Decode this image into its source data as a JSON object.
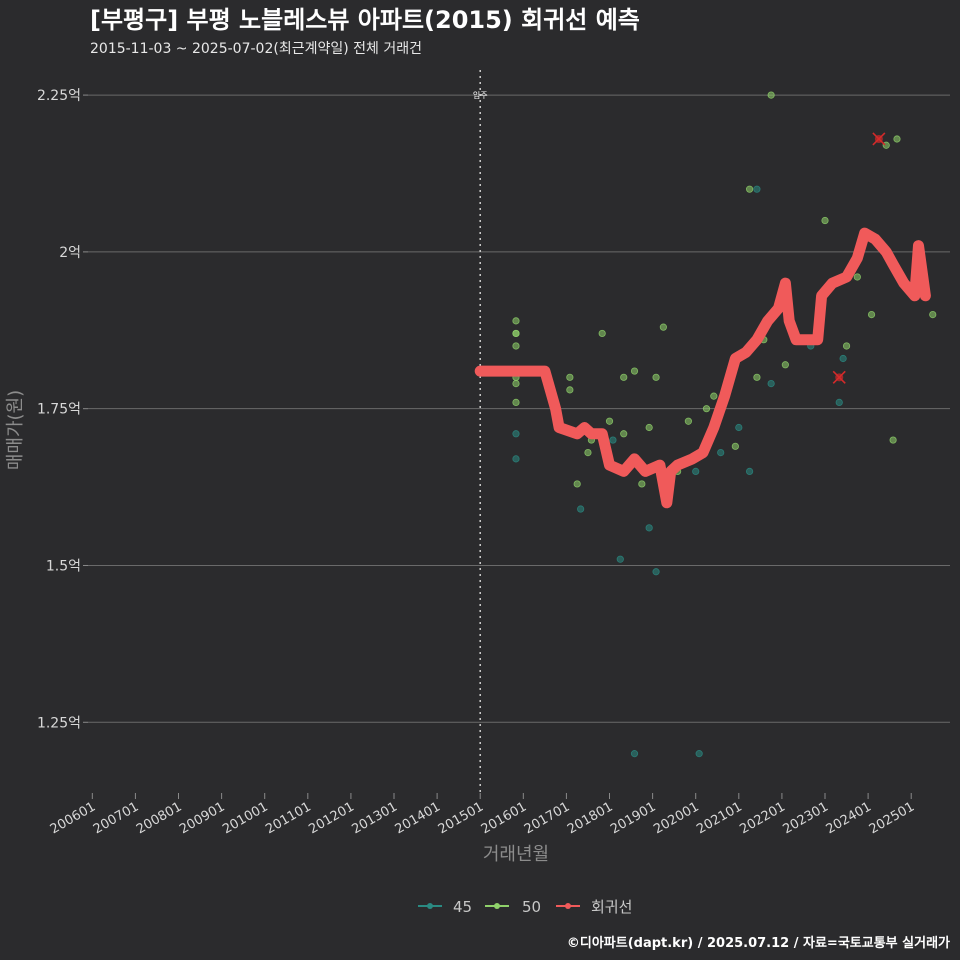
{
  "title": "[부평구] 부평 노블레스뷰 아파트(2015) 회귀선 예측",
  "subtitle": "2015-11-03 ~ 2025-07-02(최근계약일) 전체 거래건",
  "caption": "©디아파트(dapt.kr) / 2025.07.12 / 자료=국토교통부 실거래가",
  "colors": {
    "s45": "#2a8a82",
    "s50": "#8fd16a",
    "regression": "#f05a5a",
    "highlight": "#d42a2a"
  },
  "chart_data": {
    "type": "scatter",
    "title": "[부평구] 부평 노블레스뷰 아파트(2015) 회귀선 예측",
    "xlabel": "거래년월",
    "ylabel": "매매가(원)",
    "ylim": [
      1.15,
      2.29
    ],
    "y_unit": "억",
    "yticks": [
      1.25,
      1.5,
      1.75,
      2.0,
      2.25
    ],
    "ytick_labels": [
      "1.25억",
      "1.5억",
      "1.75억",
      "2억",
      "2.25억"
    ],
    "xlim": [
      2005.9,
      2025.9
    ],
    "xticks": [
      2006,
      2007,
      2008,
      2009,
      2010,
      2011,
      2012,
      2013,
      2014,
      2015,
      2016,
      2017,
      2018,
      2019,
      2020,
      2021,
      2022,
      2023,
      2024,
      2025
    ],
    "xtick_labels": [
      "200601",
      "200701",
      "200801",
      "200901",
      "201001",
      "201101",
      "201201",
      "201301",
      "201401",
      "201501",
      "201601",
      "201701",
      "201801",
      "201901",
      "202001",
      "202101",
      "202201",
      "202301",
      "202401",
      "202501"
    ],
    "annotation": {
      "x": 2015.0,
      "label": "입주"
    },
    "legend": [
      "45",
      "50",
      "회귀선"
    ],
    "series": [
      {
        "name": "45",
        "points": [
          [
            2015.83,
            1.71
          ],
          [
            2015.83,
            1.67
          ],
          [
            2017.33,
            1.59
          ],
          [
            2018.08,
            1.7
          ],
          [
            2018.25,
            1.51
          ],
          [
            2018.58,
            1.2
          ],
          [
            2018.92,
            1.56
          ],
          [
            2019.08,
            1.49
          ],
          [
            2020.0,
            1.65
          ],
          [
            2020.08,
            1.2
          ],
          [
            2020.58,
            1.68
          ],
          [
            2021.0,
            1.72
          ],
          [
            2021.25,
            1.65
          ],
          [
            2021.42,
            2.1
          ],
          [
            2021.75,
            1.79
          ],
          [
            2022.67,
            1.85
          ],
          [
            2023.33,
            1.76
          ],
          [
            2023.42,
            1.83
          ]
        ]
      },
      {
        "name": "50",
        "points": [
          [
            2015.83,
            1.89
          ],
          [
            2015.83,
            1.87
          ],
          [
            2015.83,
            1.87
          ],
          [
            2015.83,
            1.85
          ],
          [
            2015.83,
            1.8
          ],
          [
            2015.83,
            1.79
          ],
          [
            2015.83,
            1.76
          ],
          [
            2017.08,
            1.8
          ],
          [
            2017.08,
            1.78
          ],
          [
            2017.25,
            1.63
          ],
          [
            2017.5,
            1.68
          ],
          [
            2017.58,
            1.7
          ],
          [
            2017.83,
            1.87
          ],
          [
            2018.0,
            1.73
          ],
          [
            2018.33,
            1.71
          ],
          [
            2018.33,
            1.8
          ],
          [
            2018.58,
            1.81
          ],
          [
            2018.75,
            1.63
          ],
          [
            2018.92,
            1.72
          ],
          [
            2019.08,
            1.8
          ],
          [
            2019.25,
            1.88
          ],
          [
            2019.58,
            1.65
          ],
          [
            2019.83,
            1.73
          ],
          [
            2020.25,
            1.75
          ],
          [
            2020.42,
            1.77
          ],
          [
            2020.92,
            1.69
          ],
          [
            2021.25,
            2.1
          ],
          [
            2021.42,
            1.8
          ],
          [
            2021.58,
            1.86
          ],
          [
            2021.75,
            2.25
          ],
          [
            2022.08,
            1.82
          ],
          [
            2022.75,
            1.86
          ],
          [
            2023.0,
            2.05
          ],
          [
            2023.5,
            1.85
          ],
          [
            2023.75,
            1.96
          ],
          [
            2024.08,
            1.9
          ],
          [
            2024.42,
            2.17
          ],
          [
            2024.58,
            1.7
          ],
          [
            2024.67,
            2.18
          ],
          [
            2025.5,
            1.9
          ]
        ]
      }
    ],
    "highlighted": [
      [
        2024.25,
        2.18
      ],
      [
        2023.33,
        1.8
      ]
    ],
    "regression": [
      [
        2015.0,
        1.81
      ],
      [
        2016.5,
        1.81
      ],
      [
        2016.75,
        1.75
      ],
      [
        2016.83,
        1.72
      ],
      [
        2017.25,
        1.71
      ],
      [
        2017.42,
        1.72
      ],
      [
        2017.58,
        1.71
      ],
      [
        2017.83,
        1.71
      ],
      [
        2018.0,
        1.66
      ],
      [
        2018.33,
        1.65
      ],
      [
        2018.58,
        1.67
      ],
      [
        2018.83,
        1.65
      ],
      [
        2019.17,
        1.66
      ],
      [
        2019.33,
        1.6
      ],
      [
        2019.42,
        1.65
      ],
      [
        2019.58,
        1.66
      ],
      [
        2019.92,
        1.67
      ],
      [
        2020.17,
        1.68
      ],
      [
        2020.42,
        1.72
      ],
      [
        2020.67,
        1.77
      ],
      [
        2020.92,
        1.83
      ],
      [
        2021.17,
        1.84
      ],
      [
        2021.42,
        1.86
      ],
      [
        2021.67,
        1.89
      ],
      [
        2021.92,
        1.91
      ],
      [
        2022.08,
        1.95
      ],
      [
        2022.17,
        1.89
      ],
      [
        2022.33,
        1.86
      ],
      [
        2022.83,
        1.86
      ],
      [
        2022.92,
        1.93
      ],
      [
        2023.17,
        1.95
      ],
      [
        2023.5,
        1.96
      ],
      [
        2023.75,
        1.99
      ],
      [
        2023.92,
        2.03
      ],
      [
        2024.17,
        2.02
      ],
      [
        2024.42,
        2.0
      ],
      [
        2024.58,
        1.98
      ],
      [
        2024.83,
        1.95
      ],
      [
        2025.08,
        1.93
      ],
      [
        2025.17,
        2.01
      ],
      [
        2025.33,
        1.93
      ]
    ]
  }
}
